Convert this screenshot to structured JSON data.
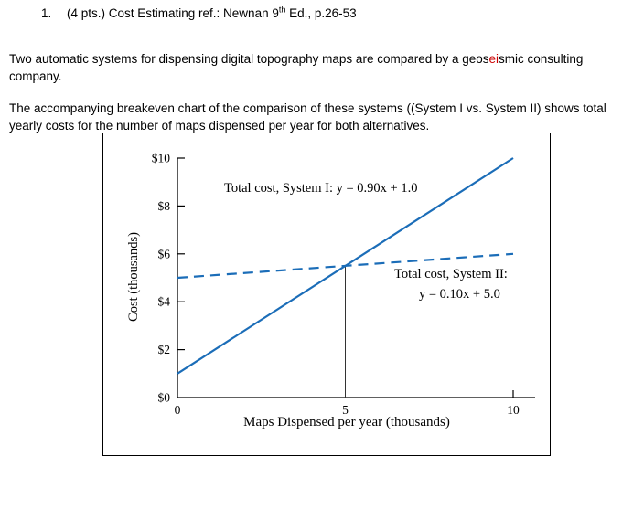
{
  "document": {
    "item_number": "1.",
    "heading_pre": "(4 pts.) Cost Estimating ref.: Newnan 9",
    "heading_sup": "th",
    "heading_post": " Ed., p.26-53",
    "para1_a": "Two automatic systems for dispensing digital topography maps are compared by a geos",
    "para1_red": "ei",
    "para1_b": "smic consulting company.",
    "para2": "The accompanying breakeven chart of the comparison of these systems ((System I vs. System II) shows total yearly costs for the number of maps dispensed per year for both alternatives."
  },
  "chart_data": {
    "type": "line",
    "title": "",
    "xlabel": "Maps Dispensed per year (thousands)",
    "ylabel": "Cost (thousands)",
    "xlim": [
      0,
      10
    ],
    "ylim": [
      0,
      10
    ],
    "x_ticks": [
      0,
      5,
      10
    ],
    "x_tick_labels": [
      "0",
      "5",
      "10"
    ],
    "y_ticks": [
      0,
      2,
      4,
      6,
      8,
      10
    ],
    "y_tick_labels": [
      "$0",
      "$2",
      "$4",
      "$6",
      "$8",
      "$10"
    ],
    "grid": false,
    "legend_position": "inline-annotations",
    "series": [
      {
        "name": "Total cost, System I",
        "equation": "y = 0.90x + 1.0",
        "style": "solid",
        "x": [
          0,
          10
        ],
        "y": [
          1.0,
          10.0
        ]
      },
      {
        "name": "Total cost, System II",
        "equation": "y = 0.10x + 5.0",
        "style": "dashed",
        "x": [
          0,
          10
        ],
        "y": [
          5.0,
          6.0
        ]
      }
    ],
    "breakeven": {
      "x": 5,
      "y": 5.5
    },
    "annotations": {
      "system1_label": "Total cost, System I: y = 0.90x + 1.0",
      "system2_label_line1": "Total cost, System II:",
      "system2_label_line2": "y = 0.10x + 5.0"
    },
    "colors": {
      "line": "#1b6db8",
      "axis": "#000000",
      "breakeven": "#333333"
    }
  }
}
